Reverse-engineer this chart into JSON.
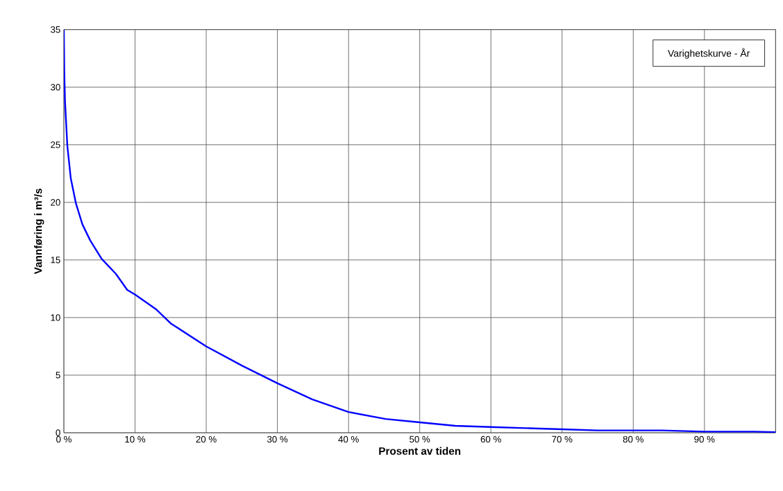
{
  "chart_data": {
    "type": "line",
    "xlabel": "Prosent av tiden",
    "ylabel": "Vannføring i m³/s",
    "x": [
      0,
      0.06,
      0.16,
      0.49,
      0.97,
      1.7,
      2.6,
      3.7,
      5.3,
      7.3,
      8.9,
      10,
      13,
      15,
      20,
      25.1,
      30,
      34.9,
      40,
      45.2,
      50,
      55,
      60,
      65,
      70,
      75,
      84,
      90,
      97,
      100
    ],
    "series": [
      {
        "name": "Varighetskurve - År",
        "color": "#0000ff",
        "values": [
          35,
          31.4,
          28.8,
          24.9,
          22.1,
          19.9,
          18.1,
          16.7,
          15.1,
          13.8,
          12.4,
          12.0,
          10.7,
          9.5,
          7.5,
          5.8,
          4.3,
          2.9,
          1.8,
          1.2,
          0.9,
          0.6,
          0.5,
          0.4,
          0.3,
          0.2,
          0.2,
          0.1,
          0.1,
          0.05
        ]
      }
    ],
    "xlim": [
      0,
      100
    ],
    "ylim": [
      0,
      35
    ],
    "xticks": [
      {
        "value": 0,
        "label": "0 %"
      },
      {
        "value": 10,
        "label": "10 %"
      },
      {
        "value": 20,
        "label": "20 %"
      },
      {
        "value": 30,
        "label": "30 %"
      },
      {
        "value": 40,
        "label": "40 %"
      },
      {
        "value": 50,
        "label": "50 %"
      },
      {
        "value": 60,
        "label": "60 %"
      },
      {
        "value": 70,
        "label": "70 %"
      },
      {
        "value": 80,
        "label": "80 %"
      },
      {
        "value": 90,
        "label": "90 %"
      },
      {
        "value": 100,
        "label": null
      }
    ],
    "yticks": [
      0,
      5,
      10,
      15,
      20,
      25,
      30,
      35
    ],
    "grid": true,
    "legend": "top right",
    "marker": "none",
    "line_style": "solid"
  }
}
